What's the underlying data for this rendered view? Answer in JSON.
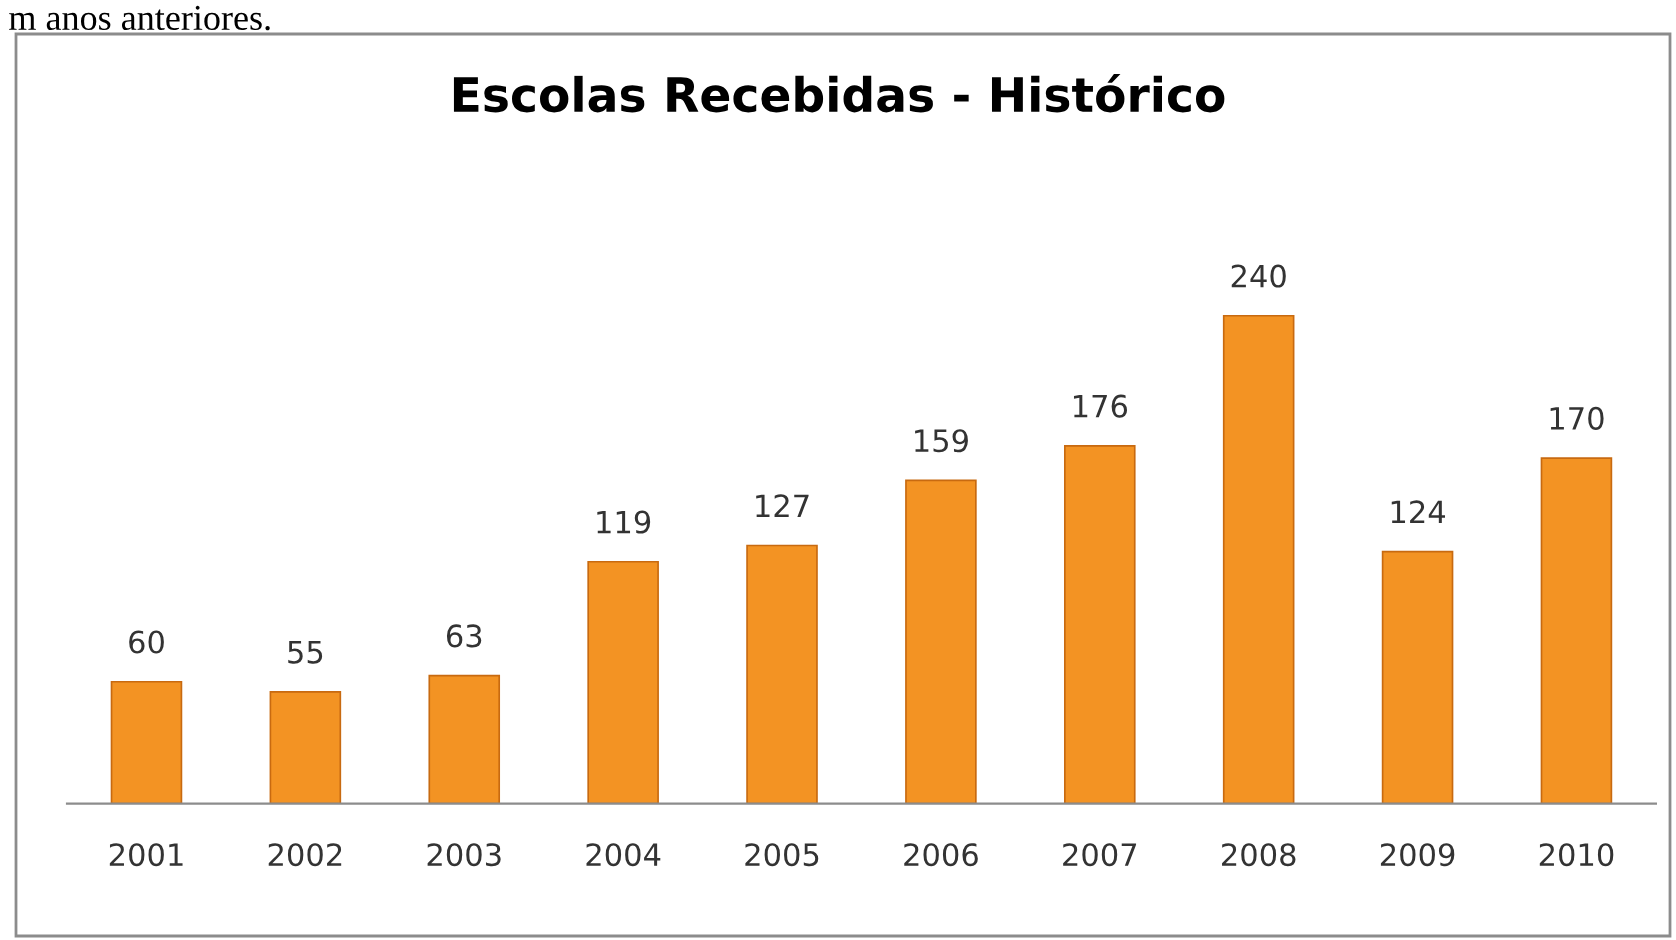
{
  "chart_data": {
    "type": "bar",
    "title": "Escolas Recebidas - Histórico",
    "categories": [
      "2001",
      "2002",
      "2003",
      "2004",
      "2005",
      "2006",
      "2007",
      "2008",
      "2009",
      "2010"
    ],
    "values": [
      60,
      55,
      63,
      119,
      127,
      159,
      176,
      240,
      124,
      170
    ],
    "color": "#f39323",
    "data_labels": true,
    "grid": false,
    "legend": false,
    "annotations": [
      "m anos anteriores."
    ]
  }
}
